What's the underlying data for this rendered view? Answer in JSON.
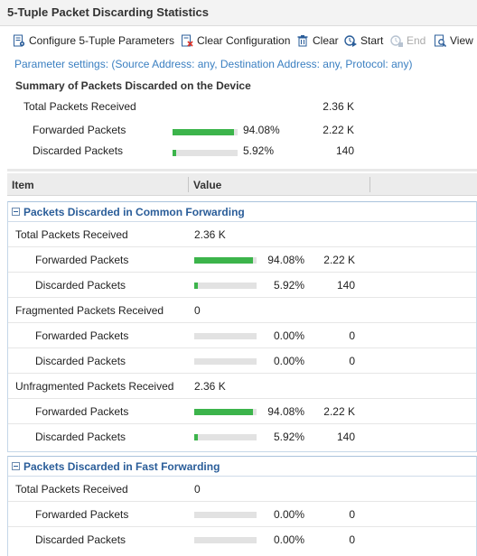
{
  "window": {
    "title": "5-Tuple Packet Discarding Statistics"
  },
  "toolbar": {
    "configure": "Configure 5-Tuple Parameters",
    "clear_config": "Clear Configuration",
    "clear": "Clear",
    "start": "Start",
    "end": "End",
    "view": "View"
  },
  "params_text": "Parameter settings: (Source Address: any, Destination Address: any, Protocol: any)",
  "summary": {
    "title": "Summary of Packets Discarded on the Device",
    "total_label": "Total Packets Received",
    "total_value": "2.36 K",
    "forwarded": {
      "label": "Forwarded Packets",
      "percent": "94.08%",
      "count": "2.22 K",
      "fraction": 0.9408
    },
    "discarded": {
      "label": "Discarded Packets",
      "percent": "5.92%",
      "count": "140",
      "fraction": 0.0592
    }
  },
  "table": {
    "col_item": "Item",
    "col_value": "Value"
  },
  "common": {
    "title": "Packets Discarded in Common Forwarding",
    "total": {
      "label": "Total Packets Received",
      "value": "2.36 K"
    },
    "fwd": {
      "label": "Forwarded Packets",
      "percent": "94.08%",
      "count": "2.22 K",
      "fraction": 0.9408
    },
    "disc": {
      "label": "Discarded Packets",
      "percent": "5.92%",
      "count": "140",
      "fraction": 0.0592
    },
    "frag": {
      "label": "Fragmented Packets Received",
      "value": "0"
    },
    "frag_fwd": {
      "label": "Forwarded Packets",
      "percent": "0.00%",
      "count": "0",
      "fraction": 0
    },
    "frag_disc": {
      "label": "Discarded Packets",
      "percent": "0.00%",
      "count": "0",
      "fraction": 0
    },
    "unfrag": {
      "label": "Unfragmented Packets Received",
      "value": "2.36 K"
    },
    "unfrag_fwd": {
      "label": "Forwarded Packets",
      "percent": "94.08%",
      "count": "2.22 K",
      "fraction": 0.9408
    },
    "unfrag_disc": {
      "label": "Discarded Packets",
      "percent": "5.92%",
      "count": "140",
      "fraction": 0.0592
    }
  },
  "fast": {
    "title": "Packets Discarded in Fast Forwarding",
    "total": {
      "label": "Total Packets Received",
      "value": "0"
    },
    "fwd": {
      "label": "Forwarded Packets",
      "percent": "0.00%",
      "count": "0",
      "fraction": 0
    },
    "disc": {
      "label": "Discarded Packets",
      "percent": "0.00%",
      "count": "0",
      "fraction": 0
    }
  },
  "colors": {
    "bar_fill": "#3cb44b",
    "bar_track": "#e2e2e2",
    "section_title": "#2a5d99",
    "link": "#3a7fc1"
  },
  "icons": [
    "configure-icon",
    "clear-configuration-icon",
    "clear-icon",
    "start-icon",
    "end-icon",
    "view-icon"
  ]
}
